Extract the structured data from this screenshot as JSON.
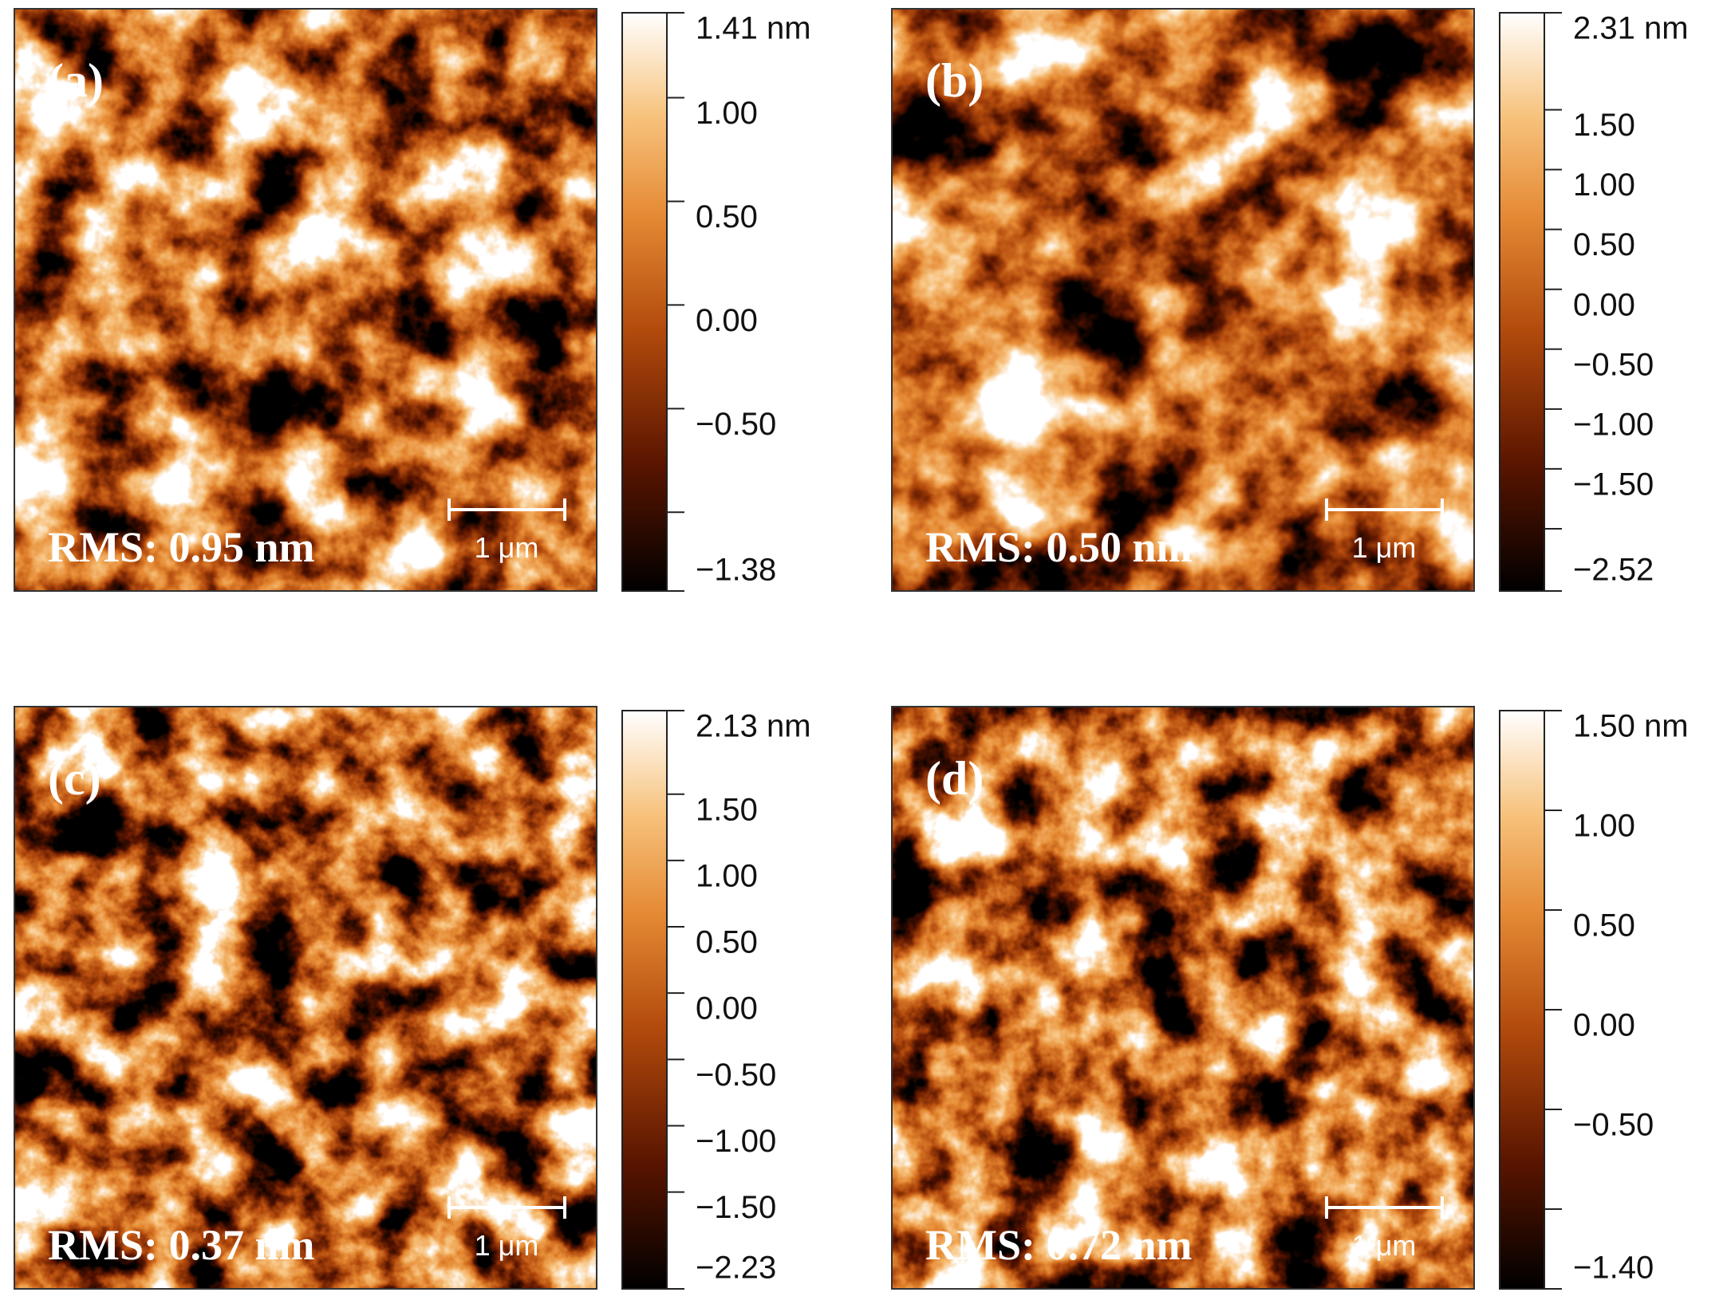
{
  "panels": [
    {
      "label": "(a)",
      "rms": "RMS: 0.95 nm",
      "scale_bar": "1 μm",
      "colorbar": {
        "range": [
          -1.38,
          1.41
        ],
        "ticks": [
          {
            "value": 1.41,
            "label": "1.41 nm"
          },
          {
            "value": 1,
            "label": "1.00"
          },
          {
            "value": 0.5,
            "label": "0.50"
          },
          {
            "value": 0,
            "label": "0.00"
          },
          {
            "value": -0.5,
            "label": "−0.50"
          },
          {
            "value": -1,
            "label": null
          },
          {
            "value": -1.38,
            "label": "−1.38"
          }
        ]
      }
    },
    {
      "label": "(b)",
      "rms": "RMS: 0.50 nm",
      "scale_bar": "1 μm",
      "colorbar": {
        "range": [
          -2.52,
          2.31
        ],
        "ticks": [
          {
            "value": 2.31,
            "label": "2.31 nm"
          },
          {
            "value": 1.5,
            "label": "1.50"
          },
          {
            "value": 1,
            "label": "1.00"
          },
          {
            "value": 0.5,
            "label": "0.50"
          },
          {
            "value": 0,
            "label": "0.00"
          },
          {
            "value": -0.5,
            "label": "−0.50"
          },
          {
            "value": -1,
            "label": "−1.00"
          },
          {
            "value": -1.5,
            "label": "−1.50"
          },
          {
            "value": -2,
            "label": null
          },
          {
            "value": -2.52,
            "label": "−2.52"
          }
        ]
      }
    },
    {
      "label": "(c)",
      "rms": "RMS: 0.37 nm",
      "scale_bar": "1 μm",
      "colorbar": {
        "range": [
          -2.23,
          2.13
        ],
        "ticks": [
          {
            "value": 2.13,
            "label": "2.13 nm"
          },
          {
            "value": 1.5,
            "label": "1.50"
          },
          {
            "value": 1,
            "label": "1.00"
          },
          {
            "value": 0.5,
            "label": "0.50"
          },
          {
            "value": 0,
            "label": "0.00"
          },
          {
            "value": -0.5,
            "label": "−0.50"
          },
          {
            "value": -1,
            "label": "−1.00"
          },
          {
            "value": -1.5,
            "label": "−1.50"
          },
          {
            "value": -2.23,
            "label": "−2.23"
          }
        ]
      }
    },
    {
      "label": "(d)",
      "rms": "RMS: 0.72 nm",
      "scale_bar": "1 μm",
      "colorbar": {
        "range": [
          -1.4,
          1.5
        ],
        "ticks": [
          {
            "value": 1.5,
            "label": "1.50 nm"
          },
          {
            "value": 1,
            "label": "1.00"
          },
          {
            "value": 0.5,
            "label": "0.50"
          },
          {
            "value": 0,
            "label": "0.00"
          },
          {
            "value": -0.5,
            "label": "−0.50"
          },
          {
            "value": -1,
            "label": null
          },
          {
            "value": -1.4,
            "label": "−1.40"
          }
        ]
      }
    }
  ]
}
